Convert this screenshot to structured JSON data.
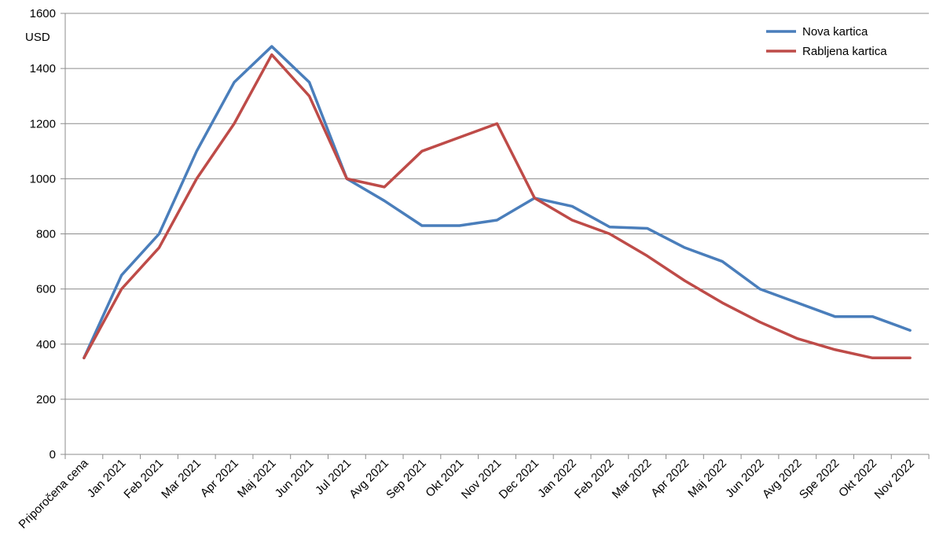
{
  "chart_data": {
    "type": "line",
    "ylabel": "USD",
    "ylim": [
      0,
      1600
    ],
    "yticks": [
      0,
      200,
      400,
      600,
      800,
      1000,
      1200,
      1400,
      1600
    ],
    "grid": true,
    "legend_position": "top-right",
    "categories": [
      "Priporočena cena",
      "Jan 2021",
      "Feb 2021",
      "Mar 2021",
      "Apr 2021",
      "Maj 2021",
      "Jun 2021",
      "Jul 2021",
      "Avg 2021",
      "Sep 2021",
      "Okt 2021",
      "Nov 2021",
      "Dec 2021",
      "Jan 2022",
      "Feb 2022",
      "Mar 2022",
      "Apr 2022",
      "Maj 2022",
      "Jun 2022",
      "Avg 2022",
      "Spe 2022",
      "Okt 2022",
      "Nov 2022"
    ],
    "series": [
      {
        "name": "Nova kartica",
        "color": "#4a7ebb",
        "values": [
          350,
          650,
          800,
          1100,
          1350,
          1480,
          1350,
          1000,
          920,
          830,
          830,
          850,
          930,
          900,
          825,
          820,
          750,
          700,
          600,
          550,
          500,
          500,
          450
        ]
      },
      {
        "name": "Rabljena kartica",
        "color": "#be4b48",
        "values": [
          350,
          600,
          750,
          1000,
          1200,
          1450,
          1300,
          1000,
          970,
          1100,
          1150,
          1200,
          930,
          850,
          800,
          720,
          630,
          550,
          480,
          420,
          380,
          350,
          350
        ]
      }
    ]
  }
}
